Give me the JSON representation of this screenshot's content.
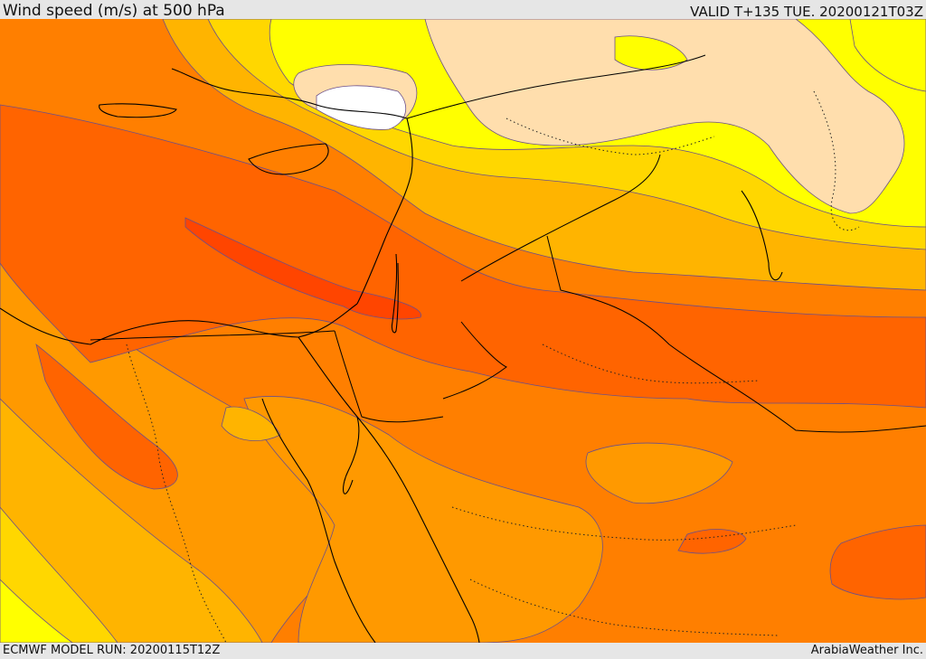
{
  "header": {
    "title": "Wind speed (m/s) at 500 hPa",
    "valid": "VALID T+135 TUE. 20200121T03Z"
  },
  "footer": {
    "model_run": "ECMWF MODEL RUN: 20200115T12Z",
    "credit": "ArabiaWeather Inc."
  },
  "map": {
    "field": "wind-speed-500hPa",
    "region": "eastern-mediterranean-middle-east",
    "colors": {
      "calm": "#ffffff",
      "very_low": "#ffdead",
      "low": "#ffff00",
      "mid_low": "#ffd700",
      "mid": "#ffb400",
      "mid_high": "#ff9900",
      "high": "#ff7f00",
      "very_high": "#ff6400",
      "jet_core": "#ff4500",
      "coastline": "#000000",
      "contour_line": "#6b4f8a"
    }
  }
}
